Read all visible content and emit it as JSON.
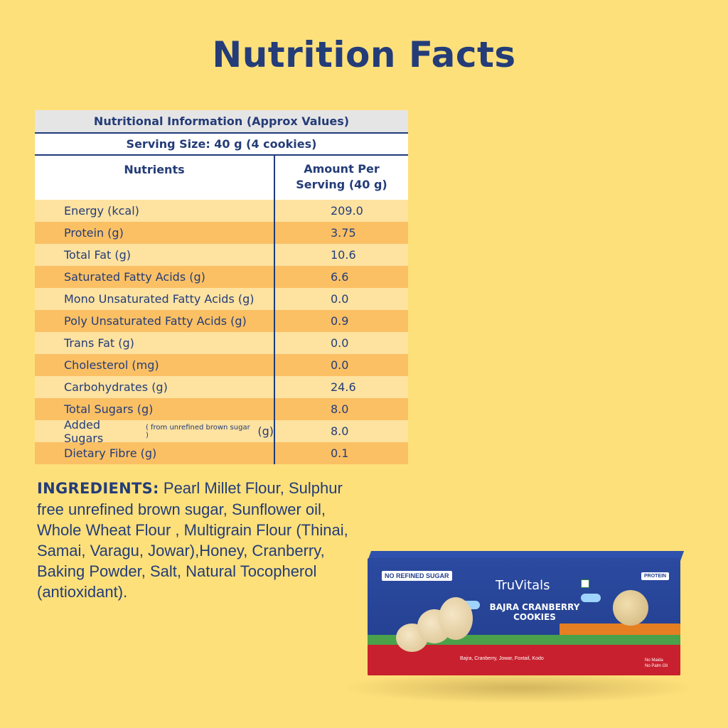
{
  "title": "Nutrition Facts",
  "table": {
    "caption": "Nutritional Information (Approx Values)",
    "serving": "Serving Size: 40 g (4 cookies)",
    "col_nutrients": "Nutrients",
    "col_amount_line1": "Amount Per",
    "col_amount_line2": "Serving (40 g)",
    "rows": [
      {
        "name": "Energy (kcal)",
        "value": "209.0"
      },
      {
        "name": "Protein (g)",
        "value": "3.75"
      },
      {
        "name": "Total Fat (g)",
        "value": "10.6"
      },
      {
        "name": "Saturated Fatty Acids (g)",
        "value": "6.6"
      },
      {
        "name": "Mono Unsaturated Fatty Acids (g)",
        "value": "0.0"
      },
      {
        "name": "Poly Unsaturated Fatty Acids (g)",
        "value": "0.9"
      },
      {
        "name": "Trans Fat (g)",
        "value": "0.0"
      },
      {
        "name": "Cholesterol (mg)",
        "value": "0.0"
      },
      {
        "name": "Carbohydrates (g)",
        "value": "24.6"
      },
      {
        "name": "Total Sugars (g)",
        "value": "8.0"
      },
      {
        "name": "Added Sugars",
        "note": "( from unrefined brown sugar )",
        "unit": "(g)",
        "value": "8.0"
      },
      {
        "name": "Dietary Fibre (g)",
        "value": "0.1"
      }
    ]
  },
  "ingredients": {
    "label": "INGREDIENTS:",
    "text": "Pearl Millet Flour, Sulphur free unrefined brown sugar, Sunflower oil, Whole Wheat Flour , Multigrain Flour (Thinai, Samai, Varagu, Jowar),Honey, Cranberry, Baking Powder, Salt, Natural Tocopherol (antioxidant)."
  },
  "package": {
    "badge": "NO REFINED SUGAR",
    "brand": "TruVitals",
    "product_line1": "BAJRA CRANBERRY",
    "product_line2": "COOKIES",
    "protein_tag": "PROTEIN",
    "grains": "Bajra, Cranberry, Jowar, Foxtail, Kodo",
    "no_maida": "No Maida",
    "no_palm_oil": "No Palm Oil"
  },
  "colors": {
    "background": "#fde07a",
    "text_navy": "#243c78",
    "row_light": "#fde2a0",
    "row_dark": "#fbc064",
    "header_gray": "#e5e5e5"
  }
}
